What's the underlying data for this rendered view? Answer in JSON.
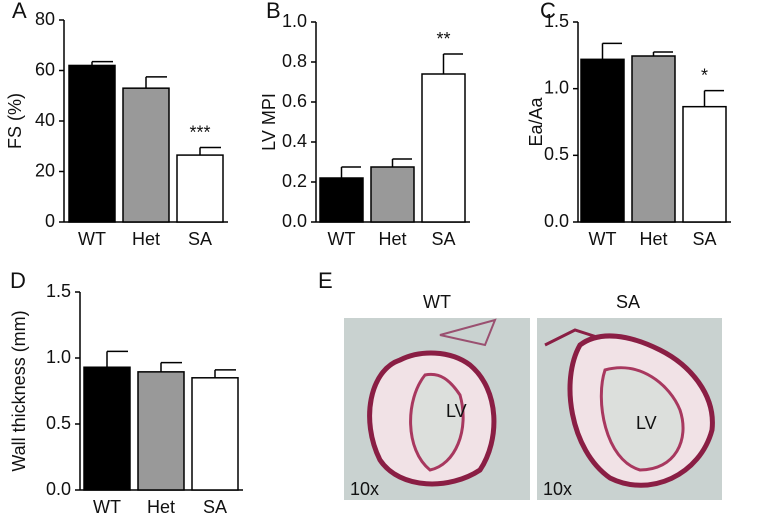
{
  "chart_data": [
    {
      "type": "bar",
      "panel": "A",
      "ylabel": "FS (%)",
      "categories": [
        "WT",
        "Het",
        "SA"
      ],
      "values": [
        62,
        53,
        26.5
      ],
      "errors": [
        1.5,
        4.5,
        3
      ],
      "colors": [
        "#000000",
        "#999999",
        "#ffffff"
      ],
      "ylim": [
        0,
        80
      ],
      "yticks": [
        0,
        20,
        40,
        60,
        80
      ],
      "annotations": [
        {
          "text": "***",
          "category": "SA"
        }
      ]
    },
    {
      "type": "bar",
      "panel": "B",
      "ylabel": "LV MPI",
      "categories": [
        "WT",
        "Het",
        "SA"
      ],
      "values": [
        0.22,
        0.275,
        0.74
      ],
      "errors": [
        0.055,
        0.04,
        0.1
      ],
      "colors": [
        "#000000",
        "#999999",
        "#ffffff"
      ],
      "ylim": [
        0,
        1
      ],
      "yticks": [
        {
          "value": 0,
          "label": "0.0"
        },
        0.2,
        0.4,
        0.6,
        0.8,
        {
          "value": 1,
          "label": "1.0"
        }
      ],
      "annotations": [
        {
          "text": "**",
          "category": "SA"
        }
      ]
    },
    {
      "type": "bar",
      "panel": "C",
      "ylabel": "Ea/Aa",
      "categories": [
        "WT",
        "Het",
        "SA"
      ],
      "values": [
        1.22,
        1.245,
        0.865
      ],
      "errors": [
        0.12,
        0.03,
        0.12
      ],
      "colors": [
        "#000000",
        "#999999",
        "#ffffff"
      ],
      "ylim": [
        0,
        1.5
      ],
      "yticks": [
        {
          "value": 0,
          "label": "0.0"
        },
        0.5,
        {
          "value": 1,
          "label": "1.0"
        },
        1.5
      ],
      "annotations": [
        {
          "text": "*",
          "category": "SA"
        }
      ]
    },
    {
      "type": "bar",
      "panel": "D",
      "ylabel": "Wall thickness (mm)",
      "categories": [
        "WT",
        "Het",
        "SA"
      ],
      "values": [
        0.93,
        0.895,
        0.85
      ],
      "errors": [
        0.12,
        0.07,
        0.06
      ],
      "colors": [
        "#000000",
        "#999999",
        "#ffffff"
      ],
      "ylim": [
        0,
        1.5
      ],
      "yticks": [
        {
          "value": 0,
          "label": "0.0"
        },
        0.5,
        {
          "value": 1,
          "label": "1.0"
        },
        1.5
      ],
      "annotations": []
    }
  ],
  "histology": {
    "panel": "E",
    "images": [
      {
        "title": "WT",
        "region": "LV",
        "magnification": "10x"
      },
      {
        "title": "SA",
        "region": "LV",
        "magnification": "10x"
      }
    ]
  }
}
